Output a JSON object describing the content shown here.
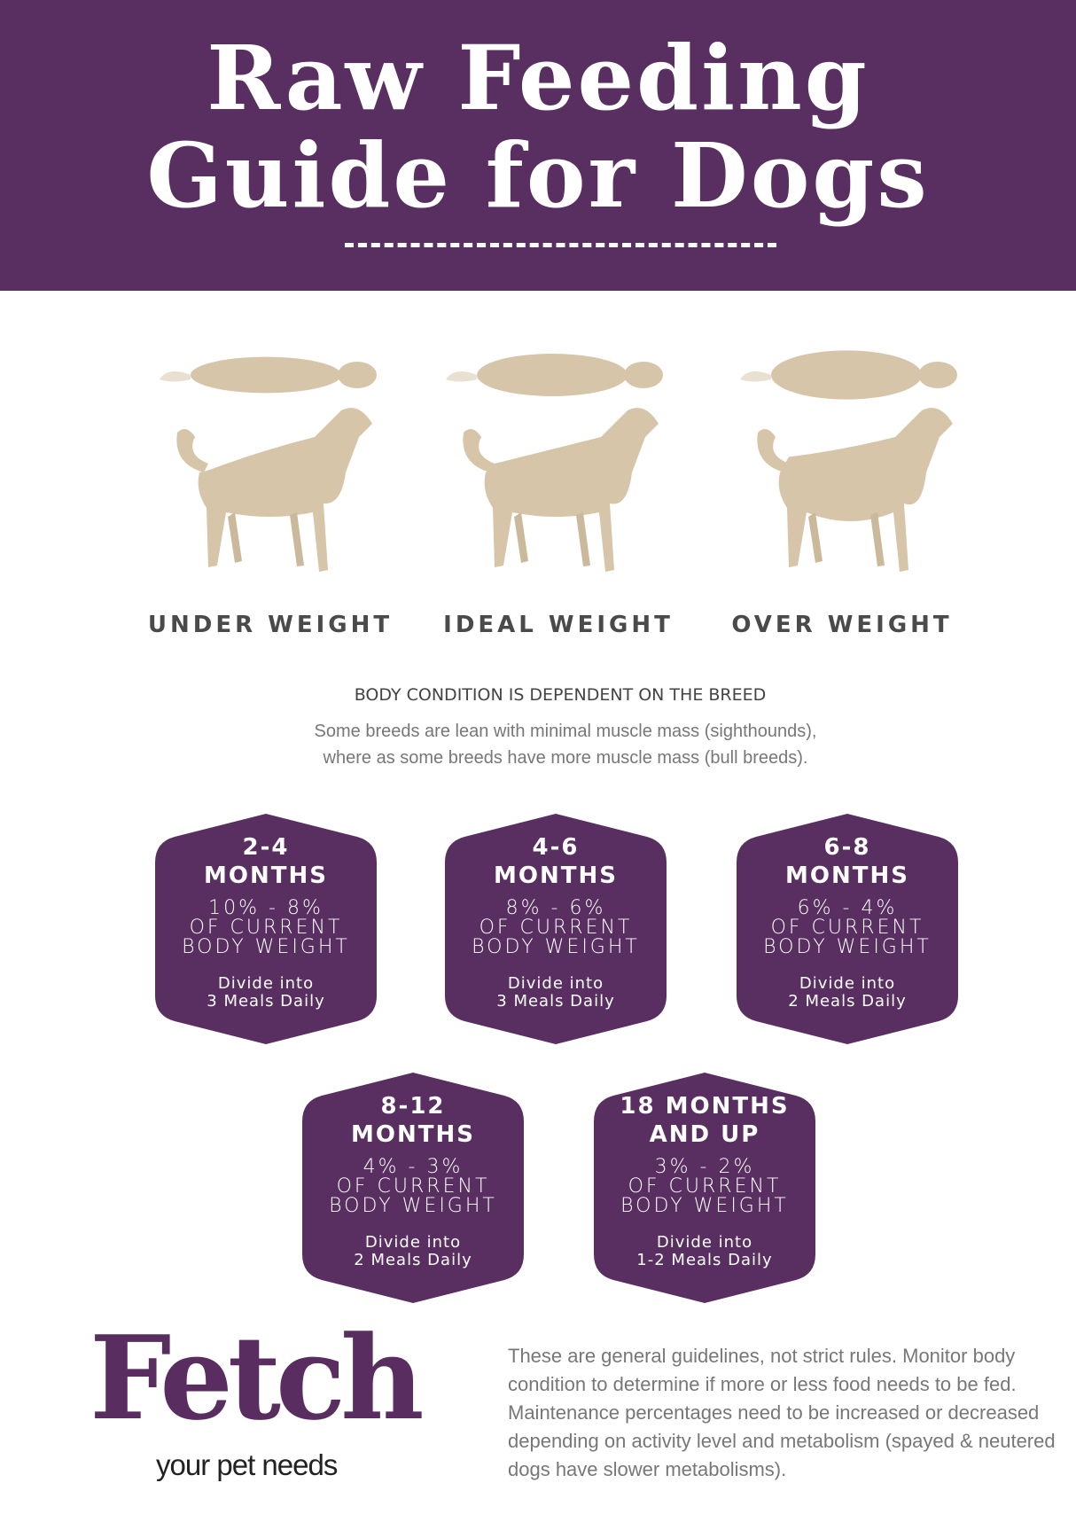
{
  "header": {
    "title_line1": "Raw Feeding",
    "title_line2": "Guide for Dogs"
  },
  "colors": {
    "brand_purple": "#582f60",
    "dog_beige": "#d6c5a9"
  },
  "weights": [
    {
      "label": "UNDER WEIGHT",
      "icon": "dog-underweight-illustration"
    },
    {
      "label": "IDEAL WEIGHT",
      "icon": "dog-ideal-weight-illustration"
    },
    {
      "label": "OVER WEIGHT",
      "icon": "dog-overweight-illustration"
    }
  ],
  "condition": {
    "heading": "BODY CONDITION IS DEPENDENT ON THE BREED",
    "line1": "Some breeds are lean with minimal muscle mass (sighthounds),",
    "line2": "where as some breeds have more muscle mass (bull breeds)."
  },
  "cards": [
    {
      "age1": "2-4",
      "age2": "MONTHS",
      "pct": "10% - 8%",
      "of": "OF CURRENT",
      "bw": "BODY WEIGHT",
      "m1": "Divide into",
      "m2": "3 Meals Daily"
    },
    {
      "age1": "4-6",
      "age2": "MONTHS",
      "pct": "8% - 6%",
      "of": "OF CURRENT",
      "bw": "BODY WEIGHT",
      "m1": "Divide into",
      "m2": "3 Meals Daily"
    },
    {
      "age1": "6-8",
      "age2": "MONTHS",
      "pct": "6% - 4%",
      "of": "OF CURRENT",
      "bw": "BODY WEIGHT",
      "m1": "Divide into",
      "m2": "2 Meals Daily"
    },
    {
      "age1": "8-12",
      "age2": "MONTHS",
      "pct": "4% - 3%",
      "of": "OF CURRENT",
      "bw": "BODY WEIGHT",
      "m1": "Divide into",
      "m2": "2 Meals Daily"
    },
    {
      "age1": "18 MONTHS",
      "age2": "AND UP",
      "pct": "3% - 2%",
      "of": "OF CURRENT",
      "bw": "BODY WEIGHT",
      "m1": "Divide into",
      "m2": "1-2 Meals Daily"
    }
  ],
  "footer": {
    "logo": "Fetch",
    "tagline": "your pet needs",
    "note": "These are general guidelines, not strict rules. Monitor body condition to determine if more or less food needs to be fed. Maintenance percentages need to be increased or decreased depending on activity level and metabolism (spayed & neutered dogs have slower metabolisms)."
  }
}
